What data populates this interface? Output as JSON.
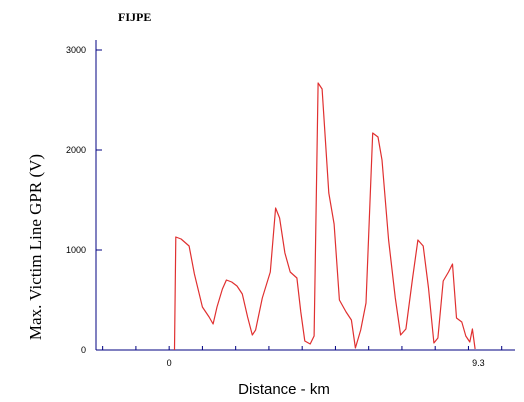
{
  "chart_data": {
    "type": "line",
    "title": "FIJPE",
    "xlabel": "Distance - km",
    "ylabel": "Max. Victim Line GPR (V)",
    "ylim": [
      0,
      3000
    ],
    "xlim": [
      -2.2,
      10.4
    ],
    "y_ticks": [
      {
        "value": 0,
        "label": "0"
      },
      {
        "value": 1000,
        "label": "1000"
      },
      {
        "value": 2000,
        "label": "2000"
      },
      {
        "value": 3000,
        "label": "3000"
      }
    ],
    "x_tick_labels": [
      {
        "value": 0,
        "label": "0"
      },
      {
        "value": 9.3,
        "label": "9.3"
      }
    ],
    "grid": false,
    "colors": {
      "line": "#e03030",
      "axis": "#000080"
    },
    "series": [
      {
        "values": [
          [
            0.16,
            0
          ],
          [
            0.2,
            1130
          ],
          [
            0.36,
            1110
          ],
          [
            0.6,
            1040
          ],
          [
            0.76,
            760
          ],
          [
            1.0,
            430
          ],
          [
            1.2,
            330
          ],
          [
            1.32,
            260
          ],
          [
            1.44,
            430
          ],
          [
            1.6,
            610
          ],
          [
            1.72,
            700
          ],
          [
            1.88,
            680
          ],
          [
            2.04,
            640
          ],
          [
            2.2,
            560
          ],
          [
            2.36,
            330
          ],
          [
            2.5,
            150
          ],
          [
            2.6,
            200
          ],
          [
            2.8,
            520
          ],
          [
            3.04,
            780
          ],
          [
            3.2,
            1420
          ],
          [
            3.32,
            1320
          ],
          [
            3.48,
            970
          ],
          [
            3.64,
            780
          ],
          [
            3.84,
            720
          ],
          [
            3.96,
            380
          ],
          [
            4.08,
            90
          ],
          [
            4.24,
            60
          ],
          [
            4.36,
            140
          ],
          [
            4.48,
            2670
          ],
          [
            4.6,
            2610
          ],
          [
            4.8,
            1570
          ],
          [
            4.96,
            1260
          ],
          [
            5.12,
            500
          ],
          [
            5.32,
            380
          ],
          [
            5.48,
            300
          ],
          [
            5.6,
            20
          ],
          [
            5.76,
            200
          ],
          [
            5.92,
            470
          ],
          [
            6.12,
            2170
          ],
          [
            6.28,
            2130
          ],
          [
            6.4,
            1900
          ],
          [
            6.6,
            1100
          ],
          [
            6.8,
            520
          ],
          [
            6.96,
            150
          ],
          [
            7.12,
            210
          ],
          [
            7.32,
            720
          ],
          [
            7.48,
            1100
          ],
          [
            7.64,
            1040
          ],
          [
            7.8,
            620
          ],
          [
            7.96,
            70
          ],
          [
            8.08,
            120
          ],
          [
            8.24,
            690
          ],
          [
            8.4,
            780
          ],
          [
            8.52,
            860
          ],
          [
            8.64,
            320
          ],
          [
            8.8,
            280
          ],
          [
            8.92,
            140
          ],
          [
            9.04,
            80
          ],
          [
            9.12,
            210
          ],
          [
            9.2,
            10
          ]
        ]
      }
    ]
  }
}
